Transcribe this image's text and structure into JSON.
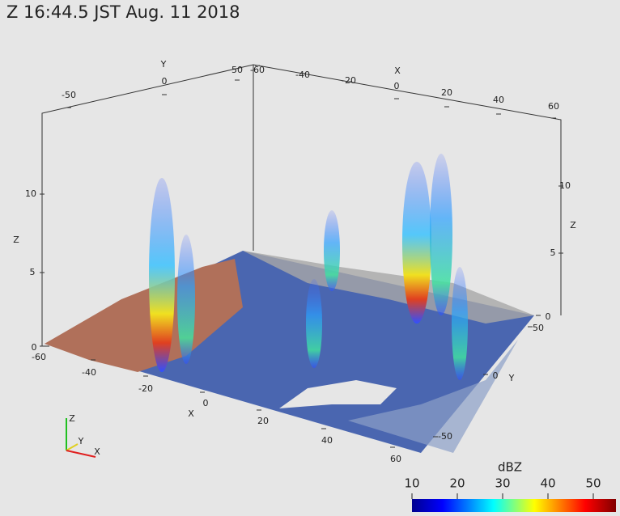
{
  "title": "Z   16:44.5 JST Aug. 11  2018",
  "axes": {
    "z_left": {
      "label": "Z",
      "ticks": [
        0,
        5,
        10
      ]
    },
    "z_right": {
      "label": "Z",
      "ticks": [
        0,
        5,
        10
      ]
    },
    "y_back": {
      "label": "Y",
      "ticks": [
        -50,
        0,
        50
      ]
    },
    "y_right": {
      "label": "Y",
      "ticks": [
        50,
        0,
        -50
      ]
    },
    "x_back": {
      "label": "X",
      "ticks": [
        -60,
        -40,
        -20,
        0,
        20,
        40,
        60
      ]
    },
    "x_front": {
      "label": "X",
      "ticks": [
        -60,
        -40,
        -20,
        0,
        20,
        40,
        60
      ]
    }
  },
  "orientation": {
    "z": "Z",
    "y": "Y",
    "x": "X"
  },
  "colorbar": {
    "title": "dBZ",
    "range": [
      10,
      55
    ],
    "ticks": [
      10,
      20,
      30,
      40,
      50
    ]
  }
}
